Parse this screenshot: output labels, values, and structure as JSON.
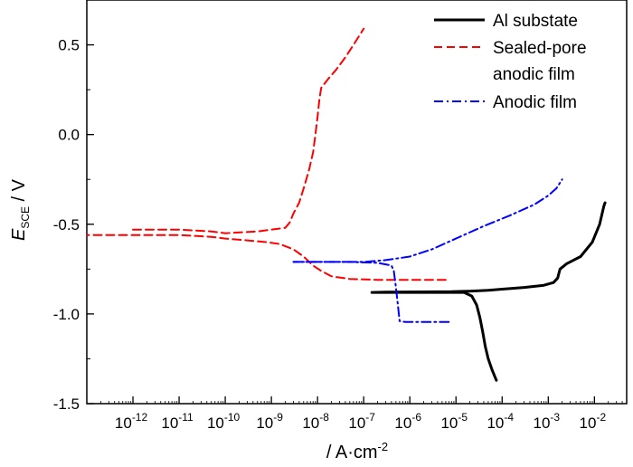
{
  "chart_data": {
    "type": "line",
    "title": "",
    "xlabel": "/ A·cm",
    "xlabel_exp": "-2",
    "ylabel_main": "E",
    "ylabel_sub": "SCE",
    "ylabel_unit": " / V",
    "xscale": "log",
    "xlim": [
      1e-13,
      0.05
    ],
    "ylim": [
      -1.5,
      0.75
    ],
    "x_ticks": [
      -12,
      -11,
      -10,
      -9,
      -8,
      -7,
      -6,
      -5,
      -4,
      -3,
      -2
    ],
    "x_tick_labels": [
      {
        "base": "10",
        "exp": "-12"
      },
      {
        "base": "10",
        "exp": "-11"
      },
      {
        "base": "10",
        "exp": "-10"
      },
      {
        "base": "10",
        "exp": "-9"
      },
      {
        "base": "10",
        "exp": "-8"
      },
      {
        "base": "10",
        "exp": "-7"
      },
      {
        "base": "10",
        "exp": "-6"
      },
      {
        "base": "10",
        "exp": "-5"
      },
      {
        "base": "10",
        "exp": "-4"
      },
      {
        "base": "10",
        "exp": "-3"
      },
      {
        "base": "10",
        "exp": "-2"
      }
    ],
    "y_ticks": [
      0.5,
      0.0,
      -0.5,
      -1.0,
      -1.5
    ],
    "y_tick_labels": [
      "0.5",
      "0.0",
      "-0.5",
      "-1.0",
      "-1.5"
    ],
    "legend_position": "top-right",
    "series": [
      {
        "name": "Al substate",
        "color": "#000000",
        "style": "solid",
        "points": [
          [
            1.5e-05,
            -0.88
          ],
          [
            5e-06,
            -0.88
          ],
          [
            1e-06,
            -0.88
          ],
          [
            2e-07,
            -0.88
          ],
          [
            1.5e-07,
            -0.88
          ],
          [
            3e-07,
            -0.878
          ],
          [
            2e-06,
            -0.877
          ],
          [
            8e-06,
            -0.876
          ],
          [
            2e-05,
            -0.873
          ],
          [
            5e-05,
            -0.868
          ],
          [
            0.0001,
            -0.862
          ],
          [
            0.0003,
            -0.852
          ],
          [
            0.0008,
            -0.84
          ],
          [
            0.0013,
            -0.825
          ],
          [
            0.0016,
            -0.8
          ],
          [
            0.0018,
            -0.75
          ],
          [
            0.0025,
            -0.72
          ],
          [
            0.005,
            -0.68
          ],
          [
            0.009,
            -0.6
          ],
          [
            0.013,
            -0.5
          ],
          [
            0.016,
            -0.4
          ],
          [
            0.017,
            -0.38
          ]
        ],
        "points2": [
          [
            1.5e-05,
            -0.88
          ],
          [
            2.2e-05,
            -0.9
          ],
          [
            2.8e-05,
            -0.95
          ],
          [
            3.3e-05,
            -1.02
          ],
          [
            3.8e-05,
            -1.1
          ],
          [
            4.3e-05,
            -1.18
          ],
          [
            5e-05,
            -1.25
          ],
          [
            6e-05,
            -1.31
          ],
          [
            7.5e-05,
            -1.37
          ]
        ]
      },
      {
        "name": "Sealed-pore anodic film",
        "name_line1": "Sealed-pore",
        "name_line2": "anodic film",
        "color": "#ff0000",
        "style": "dashed",
        "points": [
          [
            6e-06,
            -0.81
          ],
          [
            1e-06,
            -0.81
          ],
          [
            2e-07,
            -0.81
          ],
          [
            5e-08,
            -0.805
          ],
          [
            2e-08,
            -0.79
          ],
          [
            1.2e-08,
            -0.76
          ],
          [
            8e-09,
            -0.73
          ],
          [
            5e-09,
            -0.68
          ],
          [
            3e-09,
            -0.64
          ],
          [
            1.5e-09,
            -0.61
          ],
          [
            8e-10,
            -0.6
          ],
          [
            3e-10,
            -0.59
          ],
          [
            1e-10,
            -0.58
          ],
          [
            5e-11,
            -0.57
          ],
          [
            1e-11,
            -0.56
          ],
          [
            1e-12,
            -0.56
          ],
          [
            1e-13,
            -0.56
          ]
        ],
        "points2": [
          [
            1e-12,
            -0.53
          ],
          [
            1e-11,
            -0.53
          ],
          [
            5e-11,
            -0.54
          ],
          [
            1e-10,
            -0.55
          ],
          [
            5e-10,
            -0.54
          ],
          [
            1e-09,
            -0.53
          ],
          [
            2e-09,
            -0.52
          ],
          [
            2.5e-09,
            -0.49
          ],
          [
            3e-09,
            -0.44
          ],
          [
            4e-09,
            -0.38
          ],
          [
            5e-09,
            -0.3
          ],
          [
            6.5e-09,
            -0.2
          ],
          [
            8e-09,
            -0.1
          ],
          [
            9e-09,
            0.0
          ],
          [
            1e-08,
            0.1
          ],
          [
            1.1e-08,
            0.2
          ],
          [
            1.2e-08,
            0.26
          ],
          [
            1.7e-08,
            0.31
          ],
          [
            2.5e-08,
            0.36
          ],
          [
            4e-08,
            0.43
          ],
          [
            6e-08,
            0.5
          ],
          [
            8e-08,
            0.55
          ],
          [
            1e-07,
            0.59
          ]
        ]
      },
      {
        "name": "Anodic film",
        "color": "#0000ff",
        "style": "dashdot",
        "points": [
          [
            7e-06,
            -1.045
          ],
          [
            2e-06,
            -1.045
          ],
          [
            8e-07,
            -1.045
          ],
          [
            6e-07,
            -1.04
          ],
          [
            5.5e-07,
            -0.95
          ],
          [
            5e-07,
            -0.85
          ],
          [
            4.5e-07,
            -0.76
          ],
          [
            4e-07,
            -0.73
          ],
          [
            2e-07,
            -0.715
          ],
          [
            5e-08,
            -0.71
          ],
          [
            1e-08,
            -0.71
          ],
          [
            3e-09,
            -0.71
          ]
        ],
        "points2": [
          [
            3e-09,
            -0.71
          ],
          [
            3e-08,
            -0.71
          ],
          [
            1e-07,
            -0.71
          ],
          [
            3e-07,
            -0.7
          ],
          [
            1e-06,
            -0.68
          ],
          [
            3e-06,
            -0.64
          ],
          [
            1e-05,
            -0.58
          ],
          [
            4e-05,
            -0.51
          ],
          [
            0.00015,
            -0.45
          ],
          [
            0.0005,
            -0.39
          ],
          [
            0.001,
            -0.34
          ],
          [
            0.0015,
            -0.3
          ],
          [
            0.002,
            -0.25
          ]
        ]
      }
    ]
  }
}
